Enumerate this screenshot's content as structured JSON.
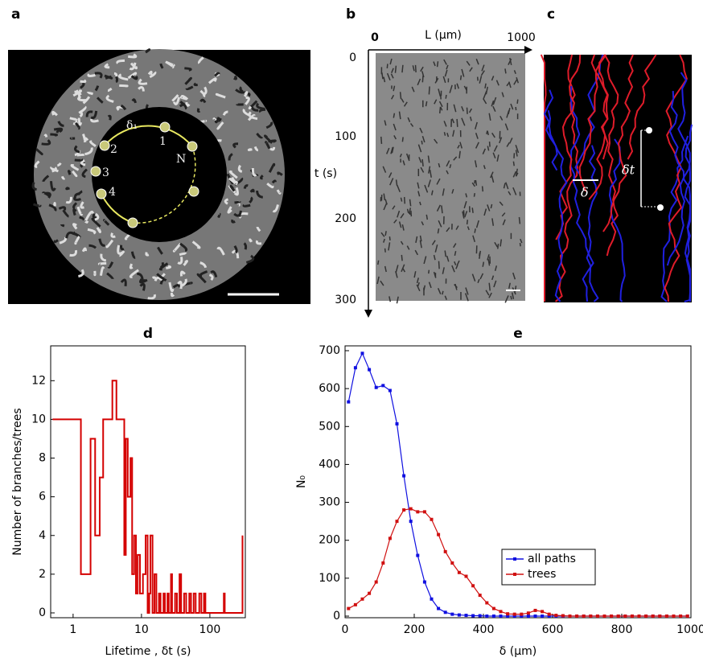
{
  "panel_a": {
    "label": "a",
    "arc_label": "δ₁",
    "points": [
      "1",
      "2",
      "3",
      "4"
    ],
    "end_label": "N"
  },
  "panel_b": {
    "label": "b",
    "x_title": "L (μm)",
    "xticks": [
      0,
      1000
    ],
    "y_title": "t (s)",
    "yticks": [
      0,
      100,
      200,
      300
    ]
  },
  "panel_c": {
    "label": "c",
    "delta": "δ",
    "delta_t": "δt"
  },
  "chart_data": [
    {
      "type": "step",
      "title": "d",
      "x_label": "Lifetime , δt (s)",
      "y_label": "Number of branches/trees",
      "color": "#d40000",
      "xscale": "log",
      "xlim": [
        0.47,
        330
      ],
      "ylim": [
        -0.25,
        13.8
      ],
      "xticks": [
        1,
        10,
        100
      ],
      "yticks": [
        0,
        2,
        4,
        6,
        8,
        10,
        12
      ],
      "x": [
        0.5,
        1.3,
        1.8,
        2.1,
        2.45,
        2.75,
        3.75,
        4.3,
        5.6,
        5.9,
        6.3,
        6.9,
        7.3,
        7.8,
        8.3,
        8.8,
        9.5,
        10.5,
        11.5,
        12.3,
        13,
        13.5,
        14.5,
        15.5,
        16.5,
        18,
        19,
        21,
        22,
        24,
        25,
        27,
        28,
        31,
        33,
        36,
        38,
        42,
        45,
        50,
        53,
        58,
        62,
        70,
        75,
        82,
        86,
        160,
        165,
        300
      ],
      "values": [
        10,
        2,
        9,
        4,
        7,
        10,
        12,
        10,
        3,
        9,
        6,
        8,
        2,
        4,
        1,
        3,
        1,
        2,
        4,
        0,
        1,
        4,
        0,
        2,
        0,
        1,
        0,
        1,
        0,
        1,
        0,
        2,
        0,
        1,
        0,
        2,
        0,
        1,
        0,
        1,
        0,
        1,
        0,
        1,
        0,
        1,
        0,
        1,
        0,
        4
      ]
    },
    {
      "type": "line",
      "title": "e",
      "x_label": "δ (μm)",
      "y_label": "N₀",
      "xlim": [
        0,
        1000
      ],
      "ylim": [
        0,
        700
      ],
      "xticks": [
        0,
        200,
        400,
        600,
        800,
        1000
      ],
      "yticks": [
        0,
        100,
        200,
        300,
        400,
        500,
        600,
        700
      ],
      "legend": "lower right",
      "x": [
        10,
        30,
        50,
        70,
        90,
        110,
        130,
        150,
        170,
        190,
        210,
        230,
        250,
        270,
        290,
        310,
        330,
        350,
        370,
        390,
        410,
        430,
        450,
        470,
        490,
        510,
        530,
        550,
        570,
        590,
        610,
        630,
        650,
        670,
        690,
        710,
        730,
        750,
        770,
        790,
        810,
        830,
        850,
        870,
        890,
        910,
        930,
        950,
        970,
        990
      ],
      "series": [
        {
          "name": "all paths",
          "color": "#1010e0",
          "values": [
            565,
            655,
            693,
            650,
            603,
            608,
            595,
            507,
            370,
            250,
            160,
            90,
            45,
            20,
            10,
            5,
            3,
            2,
            1,
            1,
            0,
            0,
            0,
            0,
            0,
            0,
            0,
            0,
            0,
            0,
            0,
            0,
            0,
            0,
            0,
            0,
            0,
            0,
            0,
            0,
            0,
            0,
            0,
            0,
            0,
            0,
            0,
            0,
            0,
            0
          ]
        },
        {
          "name": "trees",
          "color": "#d01010",
          "values": [
            20,
            30,
            45,
            60,
            90,
            140,
            205,
            250,
            280,
            283,
            275,
            275,
            255,
            215,
            170,
            140,
            115,
            105,
            80,
            55,
            35,
            20,
            12,
            6,
            5,
            5,
            8,
            15,
            12,
            5,
            2,
            1,
            0,
            0,
            0,
            0,
            0,
            0,
            0,
            0,
            0,
            0,
            0,
            0,
            0,
            0,
            0,
            0,
            0,
            0
          ]
        }
      ]
    }
  ]
}
